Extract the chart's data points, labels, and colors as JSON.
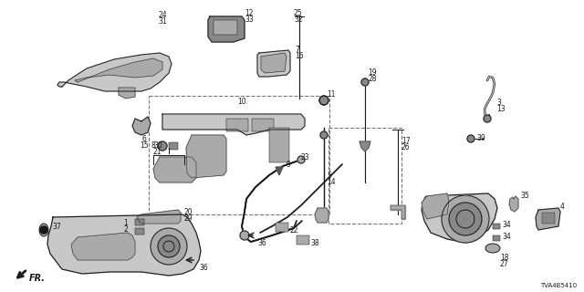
{
  "diagram_code": "TVA4B5410",
  "background_color": "#ffffff",
  "figsize": [
    6.4,
    3.2
  ],
  "dpi": 100,
  "lc": "#1a1a1a",
  "gray1": "#c8c8c8",
  "gray2": "#aaaaaa",
  "gray3": "#888888",
  "gray4": "#555555",
  "dash_color": "#777777"
}
